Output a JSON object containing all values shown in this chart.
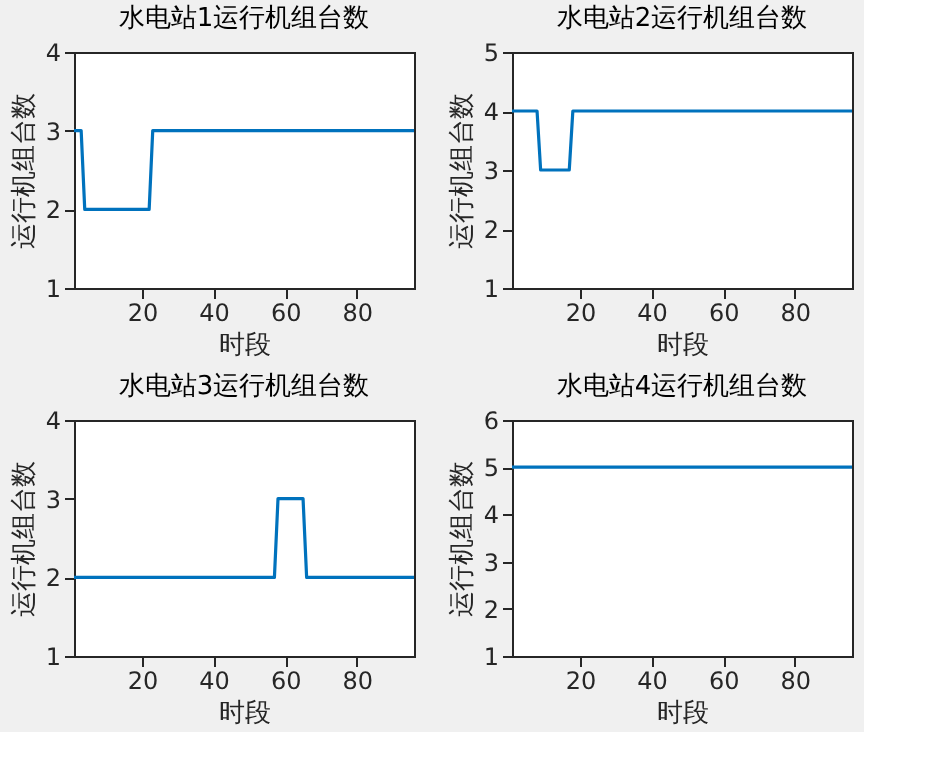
{
  "chart_data": [
    {
      "type": "line",
      "title": "水电站1运行机组台数",
      "xlabel": "时段",
      "ylabel": "运行机组台数",
      "xlim": [
        1,
        96
      ],
      "xticks": [
        20,
        40,
        60,
        80
      ],
      "ylim": [
        1,
        4
      ],
      "yticks": [
        1,
        2,
        3,
        4
      ],
      "series": [
        {
          "color": "#0072bd",
          "x": [
            1,
            3,
            4,
            22,
            23,
            96
          ],
          "values": [
            3,
            3,
            2,
            2,
            3,
            3
          ]
        }
      ]
    },
    {
      "type": "line",
      "title": "水电站2运行机组台数",
      "xlabel": "时段",
      "ylabel": "运行机组台数",
      "xlim": [
        1,
        96
      ],
      "xticks": [
        20,
        40,
        60,
        80
      ],
      "ylim": [
        1,
        5
      ],
      "yticks": [
        1,
        2,
        3,
        4,
        5
      ],
      "series": [
        {
          "color": "#0072bd",
          "x": [
            1,
            8,
            9,
            17,
            18,
            96
          ],
          "values": [
            4,
            4,
            3,
            3,
            4,
            4
          ]
        }
      ]
    },
    {
      "type": "line",
      "title": "水电站3运行机组台数",
      "xlabel": "时段",
      "ylabel": "运行机组台数",
      "xlim": [
        1,
        96
      ],
      "xticks": [
        20,
        40,
        60,
        80
      ],
      "ylim": [
        1,
        4
      ],
      "yticks": [
        1,
        2,
        3,
        4
      ],
      "series": [
        {
          "color": "#0072bd",
          "x": [
            1,
            57,
            58,
            65,
            66,
            96
          ],
          "values": [
            2,
            2,
            3,
            3,
            2,
            2
          ]
        }
      ]
    },
    {
      "type": "line",
      "title": "水电站4运行机组台数",
      "xlabel": "时段",
      "ylabel": "运行机组台数",
      "xlim": [
        1,
        96
      ],
      "xticks": [
        20,
        40,
        60,
        80
      ],
      "ylim": [
        1,
        6
      ],
      "yticks": [
        1,
        2,
        3,
        4,
        5,
        6
      ],
      "series": [
        {
          "color": "#0072bd",
          "x": [
            1,
            96
          ],
          "values": [
            5,
            5
          ]
        }
      ]
    }
  ]
}
